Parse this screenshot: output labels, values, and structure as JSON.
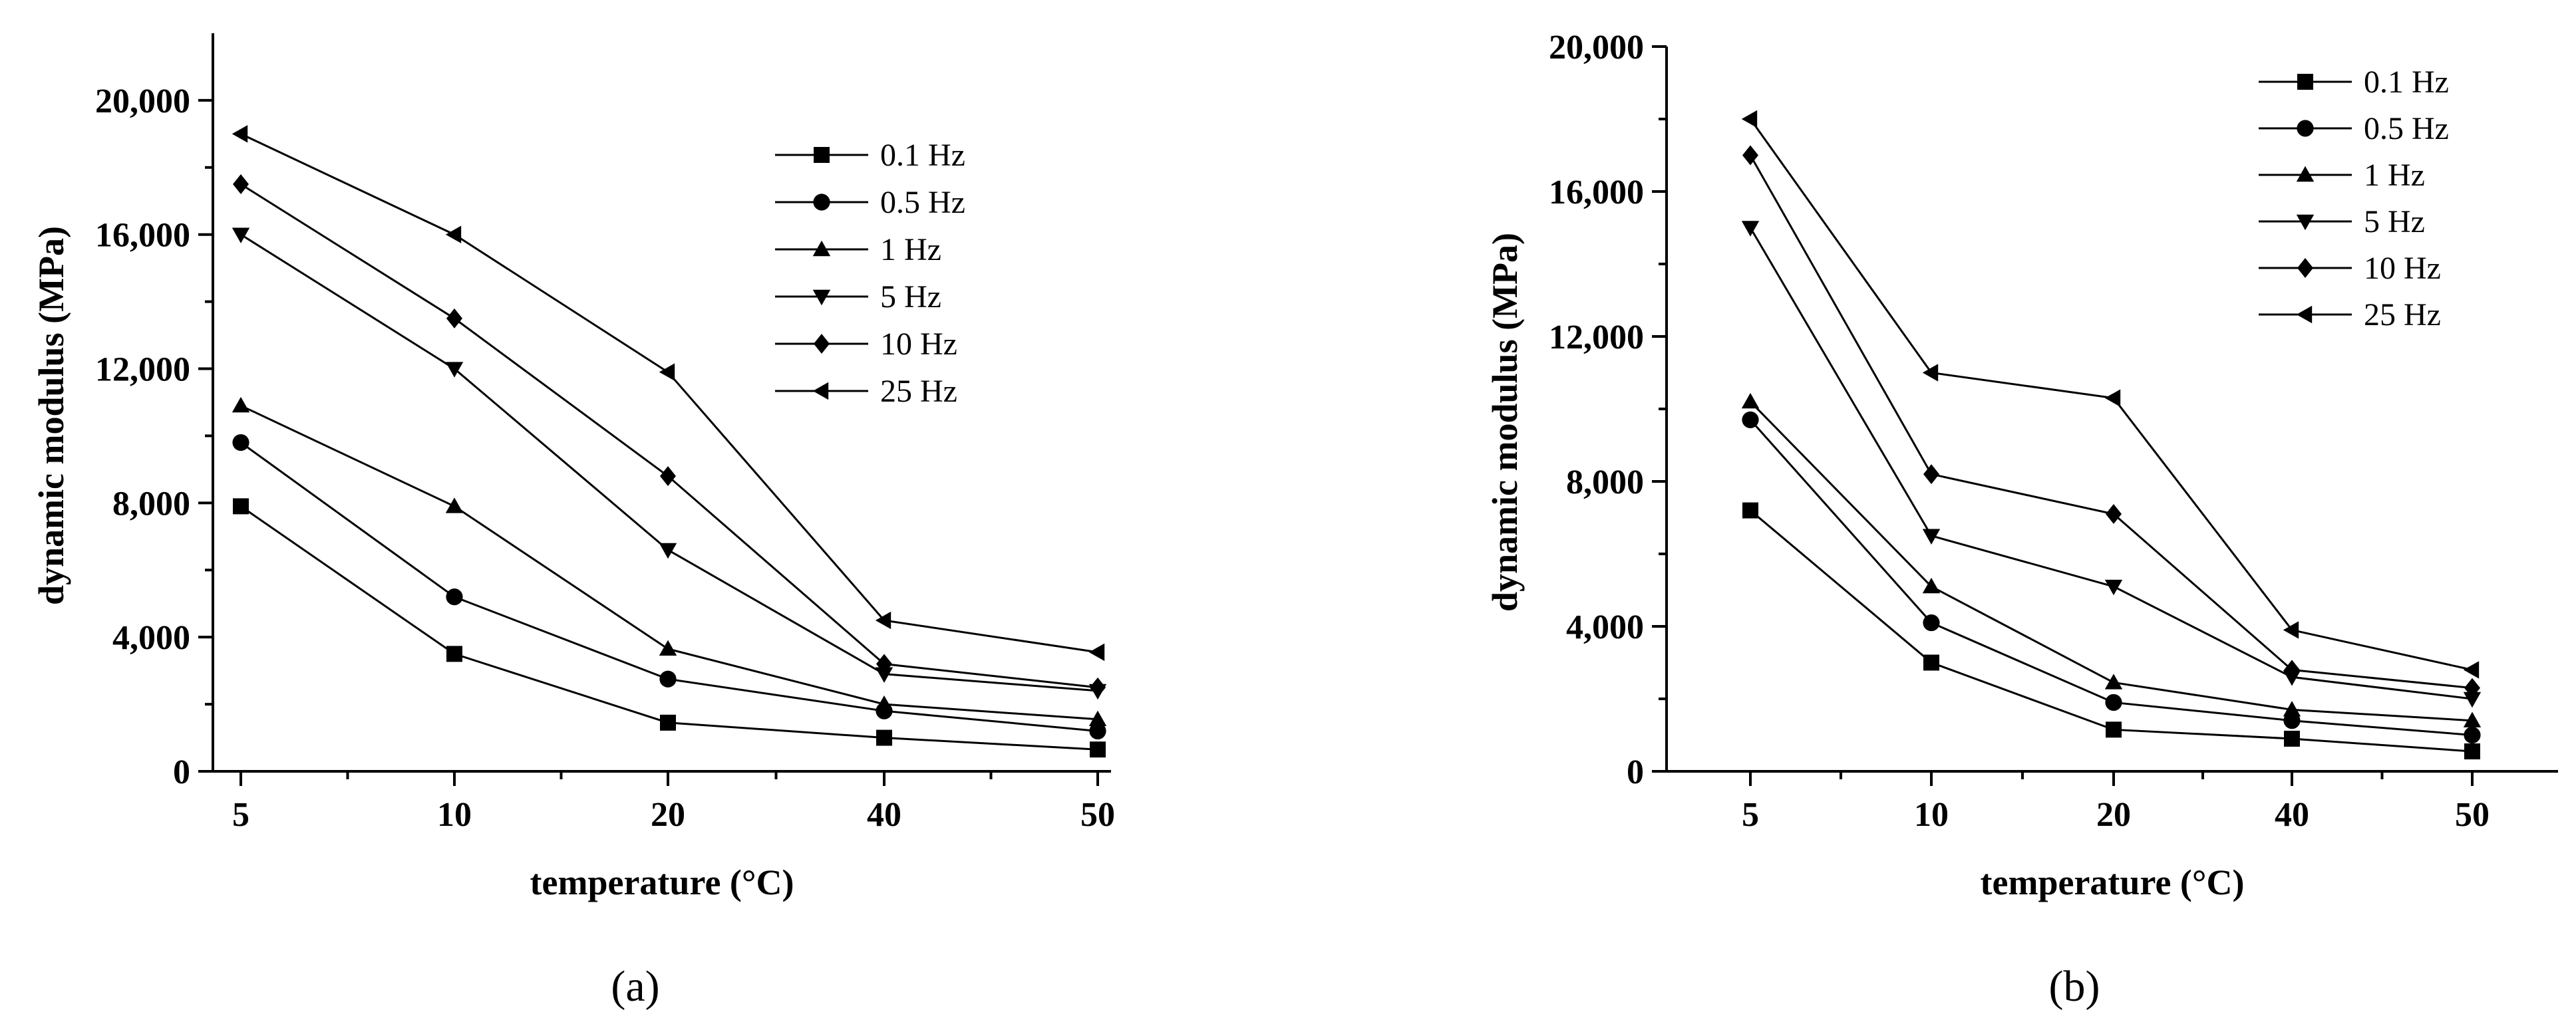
{
  "chart_data": [
    {
      "type": "line",
      "panel_label": "(a)",
      "title": "",
      "xlabel": "temperature (°C)",
      "ylabel": "dynamic modulus (MPa)",
      "categories": [
        "5",
        "10",
        "20",
        "40",
        "50"
      ],
      "ylim": [
        0,
        22000
      ],
      "yticks": [
        0,
        4000,
        8000,
        12000,
        16000,
        20000
      ],
      "ytick_labels": [
        "0",
        "4,000",
        "8,000",
        "12,000",
        "16,000",
        "20,000"
      ],
      "legend_position": "top-right",
      "series": [
        {
          "name": "0.1 Hz",
          "marker": "square",
          "values": [
            7900,
            3500,
            1450,
            1000,
            650
          ]
        },
        {
          "name": "0.5 Hz",
          "marker": "circle",
          "values": [
            9800,
            5200,
            2750,
            1800,
            1200
          ]
        },
        {
          "name": "1 Hz",
          "marker": "triangle-up",
          "values": [
            10900,
            7900,
            3650,
            2000,
            1550
          ]
        },
        {
          "name": "5 Hz",
          "marker": "triangle-down",
          "values": [
            16000,
            12000,
            6600,
            2900,
            2400
          ]
        },
        {
          "name": "10 Hz",
          "marker": "diamond",
          "values": [
            17500,
            13500,
            8800,
            3200,
            2500
          ]
        },
        {
          "name": "25 Hz",
          "marker": "triangle-left",
          "values": [
            19000,
            16000,
            11900,
            4500,
            3550
          ]
        }
      ]
    },
    {
      "type": "line",
      "panel_label": "(b)",
      "title": "",
      "xlabel": "temperature (°C)",
      "ylabel": "dynamic modulus (MPa)",
      "categories": [
        "5",
        "10",
        "20",
        "40",
        "50"
      ],
      "ylim": [
        0,
        20000
      ],
      "yticks": [
        0,
        4000,
        8000,
        12000,
        16000,
        20000
      ],
      "ytick_labels": [
        "0",
        "4,000",
        "8,000",
        "12,000",
        "16,000",
        "20,000"
      ],
      "legend_position": "top-right",
      "series": [
        {
          "name": "0.1 Hz",
          "marker": "square",
          "values": [
            7200,
            3000,
            1150,
            900,
            550
          ]
        },
        {
          "name": "0.5 Hz",
          "marker": "circle",
          "values": [
            9700,
            4100,
            1900,
            1400,
            1000
          ]
        },
        {
          "name": "1 Hz",
          "marker": "triangle-up",
          "values": [
            10200,
            5100,
            2450,
            1700,
            1400
          ]
        },
        {
          "name": "5 Hz",
          "marker": "triangle-down",
          "values": [
            15000,
            6500,
            5100,
            2600,
            2000
          ]
        },
        {
          "name": "10 Hz",
          "marker": "diamond",
          "values": [
            17000,
            8200,
            7100,
            2800,
            2300
          ]
        },
        {
          "name": "25 Hz",
          "marker": "triangle-left",
          "values": [
            18000,
            11000,
            10300,
            3900,
            2800
          ]
        }
      ]
    }
  ]
}
